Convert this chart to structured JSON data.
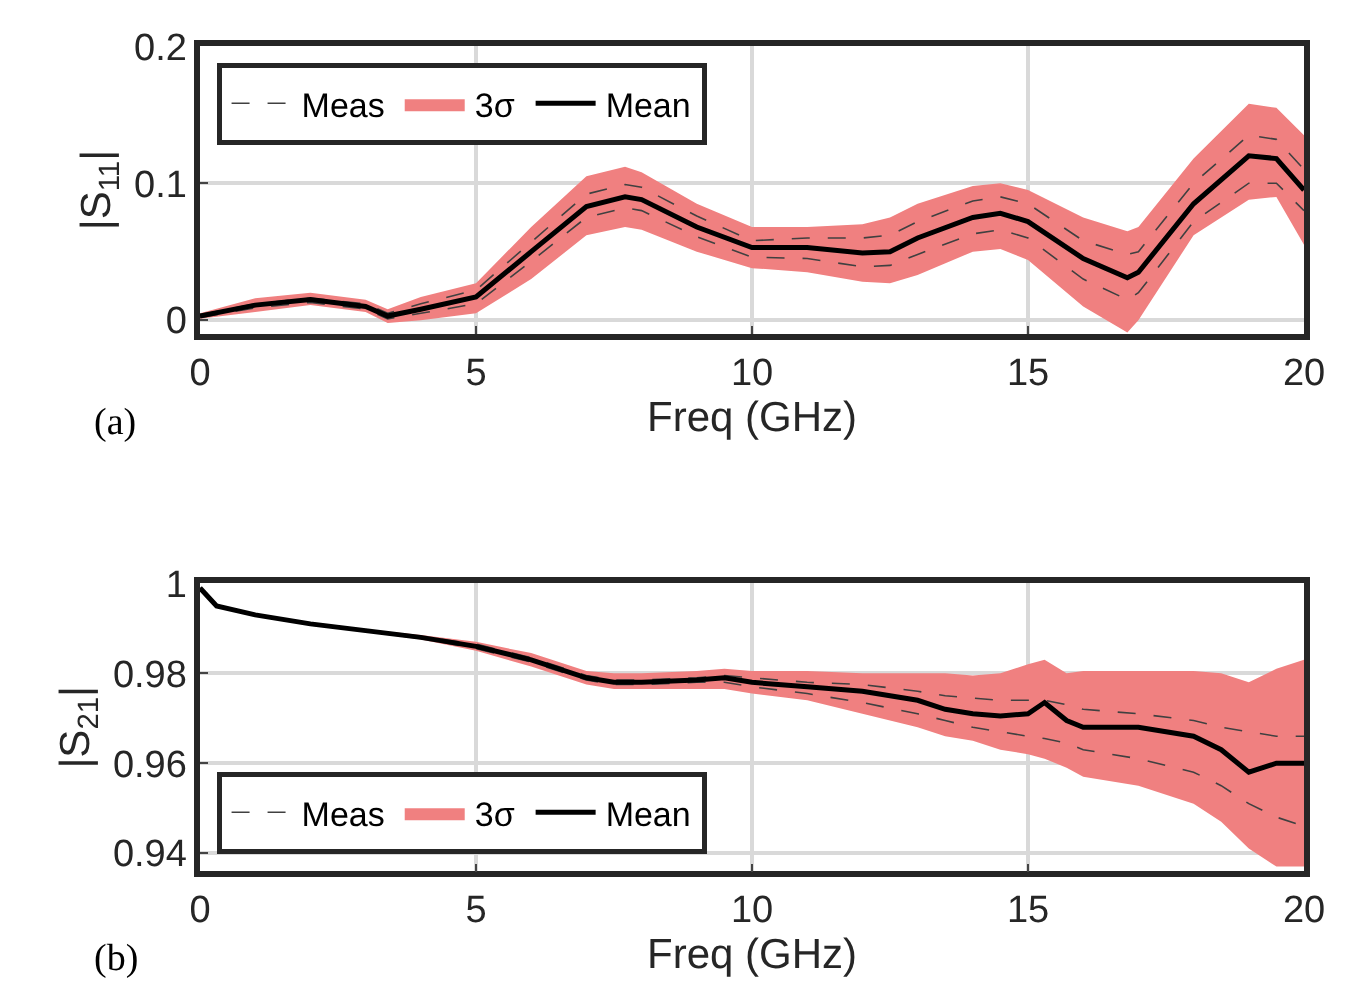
{
  "chart_data": [
    {
      "type": "line",
      "xlabel": "Freq (GHz)",
      "ylabel": "|S$_{11}$|",
      "annotations": [
        "(a)"
      ],
      "legend": "top left",
      "grid": true,
      "x": [
        0,
        1,
        2,
        3,
        3.4,
        4,
        5,
        6,
        7,
        7.7,
        8,
        9,
        10,
        11,
        12,
        12.5,
        13,
        14,
        14.5,
        15,
        16,
        16.8,
        17,
        18,
        19,
        19.5,
        20
      ],
      "xlim": [
        0,
        20
      ],
      "xticks": [
        0,
        5,
        10,
        15,
        20
      ],
      "ylim": [
        -0.01,
        0.2
      ],
      "yticks": [
        0,
        0.1,
        0.2
      ],
      "series": [
        {
          "name": "Meas",
          "color": "#404040",
          "line_style": "dashed",
          "values": [
            0.004,
            0.012,
            0.016,
            0.012,
            0.005,
            0.012,
            0.022,
            0.057,
            0.092,
            0.099,
            0.097,
            0.076,
            0.058,
            0.06,
            0.06,
            0.062,
            0.072,
            0.087,
            0.09,
            0.085,
            0.058,
            0.048,
            0.05,
            0.1,
            0.135,
            0.132,
            0.11
          ]
        },
        {
          "color": "#404040",
          "line_style": "dashed",
          "values": [
            0.002,
            0.009,
            0.013,
            0.008,
            0.001,
            0.005,
            0.012,
            0.043,
            0.075,
            0.082,
            0.08,
            0.061,
            0.046,
            0.045,
            0.039,
            0.04,
            0.048,
            0.063,
            0.066,
            0.06,
            0.03,
            0.015,
            0.02,
            0.072,
            0.1,
            0.1,
            0.08
          ]
        },
        {
          "name": "3σ",
          "type": "area",
          "color": "#f08080",
          "values": [
            null,
            null,
            null,
            null,
            null,
            null,
            null,
            null,
            null,
            null,
            null,
            null,
            null,
            null,
            null,
            null,
            null,
            null,
            null,
            null,
            null,
            null,
            null,
            null,
            null,
            null,
            null
          ]
        },
        {
          "name": "Mean",
          "color": "#000000",
          "line_style": "solid",
          "values": [
            0.003,
            0.011,
            0.015,
            0.01,
            0.003,
            0.008,
            0.017,
            0.05,
            0.083,
            0.09,
            0.088,
            0.068,
            0.053,
            0.053,
            0.049,
            0.05,
            0.06,
            0.075,
            0.078,
            0.072,
            0.045,
            0.031,
            0.035,
            0.085,
            0.12,
            0.118,
            0.095
          ],
          "lower": [
            0.001,
            0.006,
            0.011,
            0.006,
            -0.002,
            0.0,
            0.005,
            0.03,
            0.062,
            0.068,
            0.066,
            0.05,
            0.038,
            0.035,
            0.028,
            0.027,
            0.033,
            0.05,
            0.052,
            0.044,
            0.01,
            -0.009,
            0.0,
            0.062,
            0.088,
            0.09,
            0.055
          ],
          "upper": [
            0.005,
            0.016,
            0.02,
            0.015,
            0.008,
            0.017,
            0.027,
            0.068,
            0.105,
            0.112,
            0.108,
            0.085,
            0.068,
            0.068,
            0.07,
            0.075,
            0.085,
            0.098,
            0.1,
            0.095,
            0.075,
            0.065,
            0.068,
            0.118,
            0.158,
            0.155,
            0.135
          ]
        }
      ]
    },
    {
      "type": "line",
      "xlabel": "Freq (GHz)",
      "ylabel": "|S$_{21}$|",
      "annotations": [
        "(b)"
      ],
      "legend": "bottom left",
      "grid": true,
      "x": [
        0,
        0.3,
        1,
        2,
        3,
        4,
        5,
        6,
        7,
        7.5,
        8,
        9,
        9.5,
        10,
        11,
        12,
        13,
        13.5,
        14,
        14.5,
        15,
        15.3,
        15.7,
        16,
        17,
        18,
        18.5,
        19,
        19.5,
        20
      ],
      "xlim": [
        0,
        20
      ],
      "xticks": [
        0,
        5,
        10,
        15,
        20
      ],
      "ylim": [
        0.936,
        1
      ],
      "yticks": [
        0.94,
        0.96,
        0.98,
        1
      ],
      "series": [
        {
          "name": "Meas",
          "color": "#404040",
          "line_style": "dashed",
          "values": [
            0.999,
            0.995,
            0.993,
            0.991,
            0.9896,
            0.9882,
            0.9865,
            0.9835,
            0.9795,
            0.9785,
            0.9785,
            0.979,
            0.9795,
            0.979,
            0.978,
            0.9775,
            0.976,
            0.975,
            0.9745,
            0.974,
            0.974,
            0.974,
            0.973,
            0.972,
            0.971,
            0.9695,
            0.968,
            0.967,
            0.966,
            0.966
          ]
        },
        {
          "color": "#404040",
          "line_style": "dashed",
          "values": [
            0.999,
            0.995,
            0.993,
            0.991,
            0.9894,
            0.9878,
            0.9855,
            0.9825,
            0.9785,
            0.9775,
            0.9775,
            0.978,
            0.978,
            0.977,
            0.9755,
            0.9735,
            0.971,
            0.9695,
            0.968,
            0.967,
            0.966,
            0.9655,
            0.9645,
            0.963,
            0.961,
            0.958,
            0.955,
            0.951,
            0.948,
            0.946
          ]
        },
        {
          "name": "3σ",
          "type": "area",
          "color": "#f08080",
          "values": [
            null,
            null,
            null,
            null,
            null,
            null,
            null,
            null,
            null,
            null,
            null,
            null,
            null,
            null,
            null,
            null,
            null,
            null,
            null,
            null,
            null,
            null,
            null,
            null,
            null,
            null,
            null,
            null,
            null,
            null
          ]
        },
        {
          "name": "Mean",
          "color": "#000000",
          "line_style": "solid",
          "values": [
            0.999,
            0.995,
            0.993,
            0.991,
            0.9895,
            0.988,
            0.986,
            0.983,
            0.979,
            0.978,
            0.978,
            0.9785,
            0.979,
            0.978,
            0.977,
            0.976,
            0.974,
            0.972,
            0.971,
            0.9705,
            0.971,
            0.9735,
            0.9695,
            0.968,
            0.968,
            0.966,
            0.963,
            0.958,
            0.96,
            0.96
          ],
          "lower": [
            0.999,
            0.995,
            0.993,
            0.991,
            0.9892,
            0.9875,
            0.985,
            0.9815,
            0.9775,
            0.9765,
            0.9765,
            0.9765,
            0.9765,
            0.9755,
            0.974,
            0.971,
            0.968,
            0.966,
            0.965,
            0.963,
            0.962,
            0.961,
            0.959,
            0.957,
            0.955,
            0.951,
            0.947,
            0.941,
            0.937,
            0.937
          ],
          "upper": [
            0.999,
            0.995,
            0.993,
            0.991,
            0.9898,
            0.9885,
            0.987,
            0.9845,
            0.9805,
            0.98,
            0.98,
            0.9805,
            0.981,
            0.9805,
            0.9805,
            0.98,
            0.98,
            0.98,
            0.9795,
            0.98,
            0.982,
            0.983,
            0.98,
            0.9805,
            0.9805,
            0.9805,
            0.98,
            0.978,
            0.981,
            0.983
          ]
        }
      ]
    }
  ]
}
